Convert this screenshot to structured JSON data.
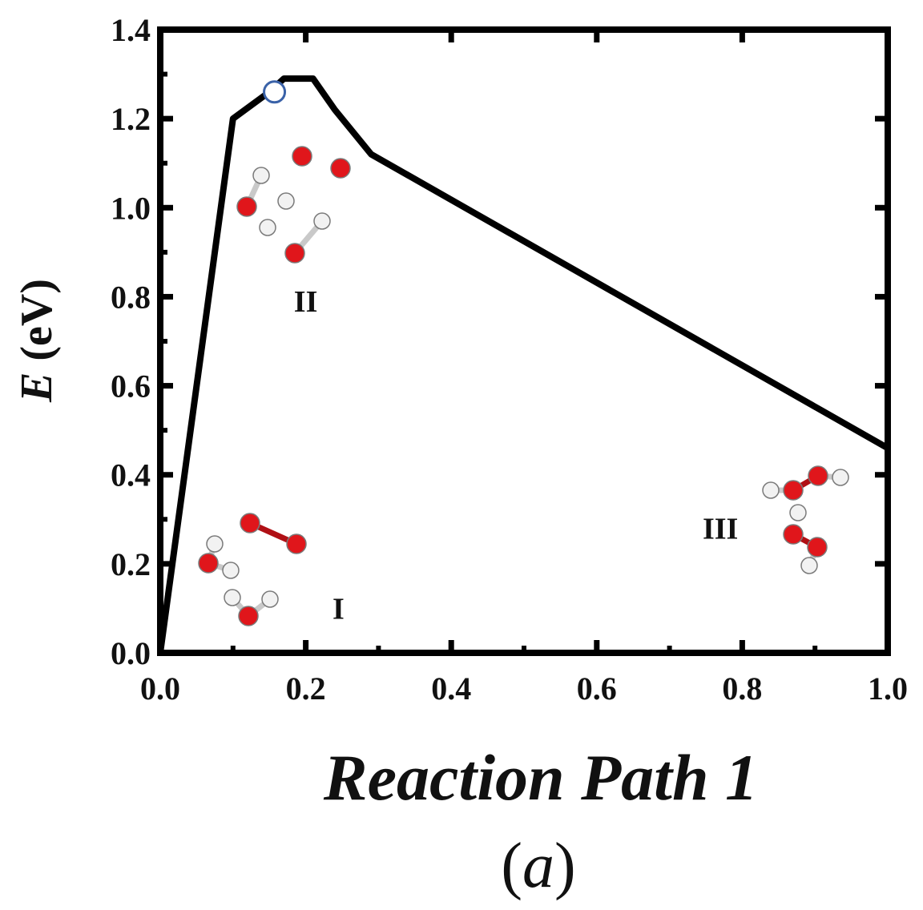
{
  "chart_data": {
    "type": "line",
    "xlabel": "Reaction Path 1",
    "ylabel_symbol": "E",
    "ylabel_unit": " (eV)",
    "panel_label_open": "(",
    "panel_label_letter": "a",
    "panel_label_close": ")",
    "xlim": [
      0.0,
      1.0
    ],
    "ylim": [
      0.0,
      1.4
    ],
    "xticks": [
      0.0,
      0.2,
      0.4,
      0.6,
      0.8,
      1.0
    ],
    "xtick_labels": [
      "0.0",
      "0.2",
      "0.4",
      "0.6",
      "0.8",
      "1.0"
    ],
    "yticks": [
      0.0,
      0.2,
      0.4,
      0.6,
      0.8,
      1.0,
      1.2,
      1.4
    ],
    "ytick_labels": [
      "0.0",
      "0.2",
      "0.4",
      "0.6",
      "0.8",
      "1.0",
      "1.2",
      "1.4"
    ],
    "grid": false,
    "series": [
      {
        "color": "#000000",
        "x": [
          0.0,
          0.1,
          0.15,
          0.17,
          0.21,
          0.24,
          0.29,
          1.0
        ],
        "y": [
          0.0,
          1.2,
          1.26,
          1.29,
          1.29,
          1.22,
          1.12,
          0.46
        ]
      }
    ],
    "marker": {
      "x": 0.157,
      "y": 1.26,
      "shape": "open-circle",
      "color": "#3a62a8"
    },
    "annotations": [
      {
        "text": "I",
        "x": 0.245,
        "y": 0.1
      },
      {
        "text": "II",
        "x": 0.2,
        "y": 0.79
      },
      {
        "text": "III",
        "x": 0.77,
        "y": 0.28
      }
    ]
  },
  "molecules": {
    "oxygen_color": "#e0161b",
    "hydrogen_color": "#f2f2f2"
  }
}
